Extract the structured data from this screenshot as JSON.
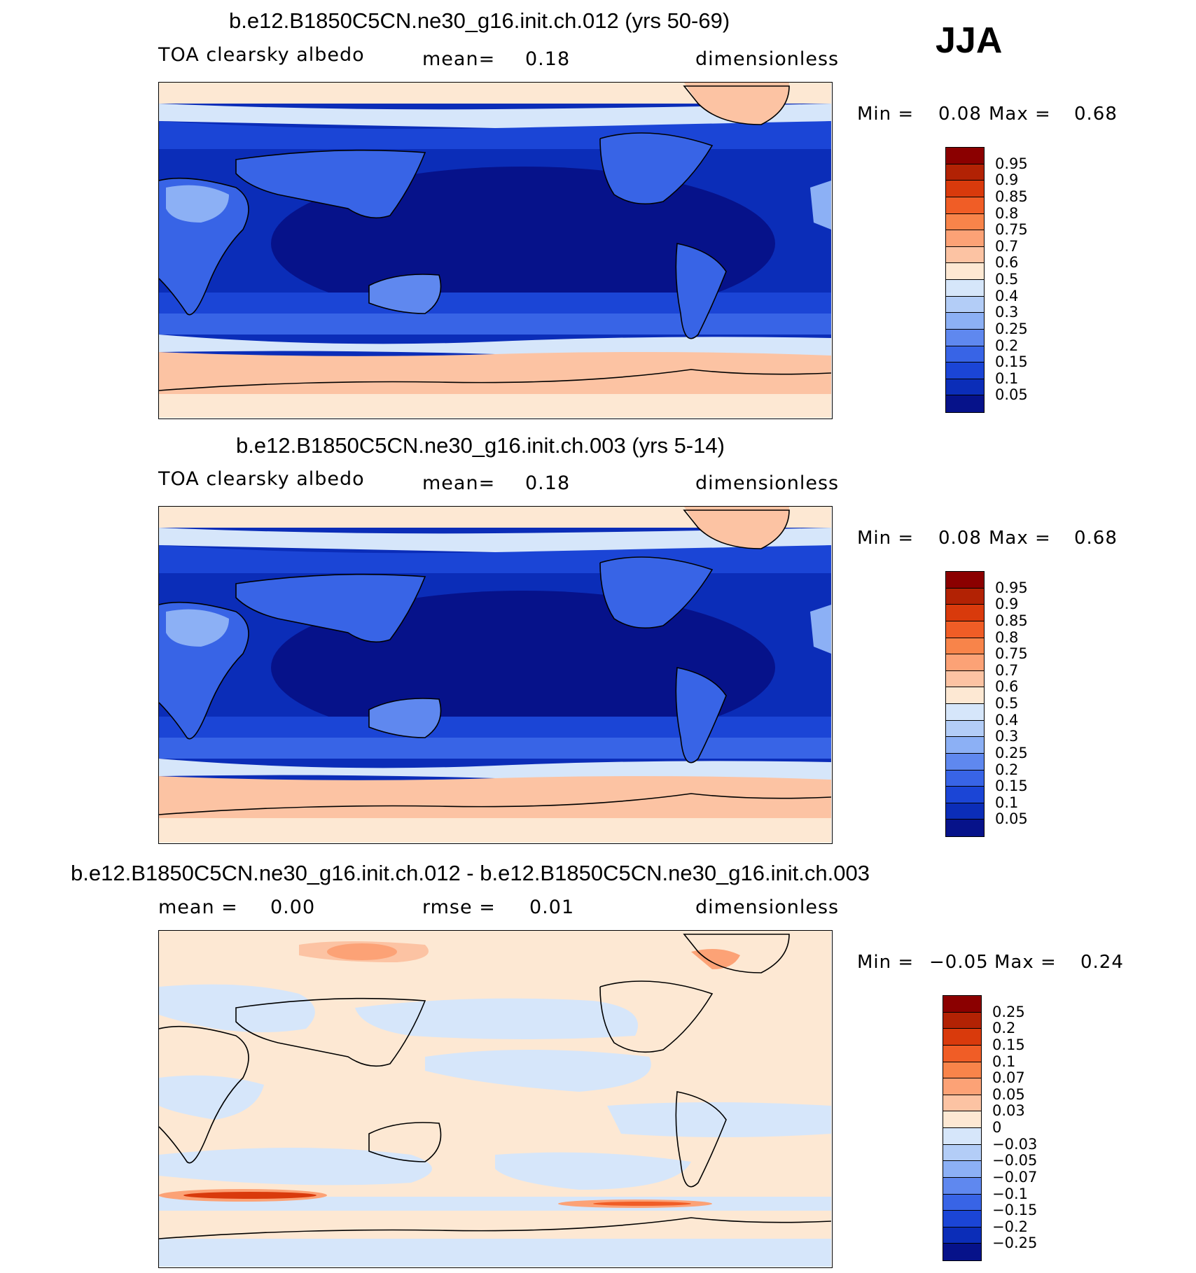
{
  "season": "JJA",
  "panels": [
    {
      "title": "b.e12.B1850C5CN.ne30_g16.init.ch.012 (yrs 50-69)",
      "left_label": "TOA clearsky albedo",
      "center_label": "mean=",
      "center_value": "0.18",
      "right_label": "dimensionless",
      "min_label": "Min =",
      "min_value": "0.08",
      "max_label": "Max =",
      "max_value": "0.68",
      "colorbar_labels": [
        "0.95",
        "0.9",
        "0.85",
        "0.8",
        "0.75",
        "0.7",
        "0.6",
        "0.5",
        "0.4",
        "0.3",
        "0.25",
        "0.2",
        "0.15",
        "0.1",
        "0.05"
      ],
      "colorbar_colors": [
        "#8b0000",
        "#b22204",
        "#d93a0c",
        "#f05d26",
        "#f8844a",
        "#fca276",
        "#fcc3a3",
        "#fde8d3",
        "#d6e6fa",
        "#b3cdf7",
        "#8cb0f5",
        "#5f88ef",
        "#3864e6",
        "#1b45d6",
        "#0b2db8",
        "#06128a"
      ]
    },
    {
      "title": "b.e12.B1850C5CN.ne30_g16.init.ch.003 (yrs 5-14)",
      "left_label": "TOA clearsky albedo",
      "center_label": "mean=",
      "center_value": "0.18",
      "right_label": "dimensionless",
      "min_label": "Min =",
      "min_value": "0.08",
      "max_label": "Max =",
      "max_value": "0.68",
      "colorbar_labels": [
        "0.95",
        "0.9",
        "0.85",
        "0.8",
        "0.75",
        "0.7",
        "0.6",
        "0.5",
        "0.4",
        "0.3",
        "0.25",
        "0.2",
        "0.15",
        "0.1",
        "0.05"
      ],
      "colorbar_colors": [
        "#8b0000",
        "#b22204",
        "#d93a0c",
        "#f05d26",
        "#f8844a",
        "#fca276",
        "#fcc3a3",
        "#fde8d3",
        "#d6e6fa",
        "#b3cdf7",
        "#8cb0f5",
        "#5f88ef",
        "#3864e6",
        "#1b45d6",
        "#0b2db8",
        "#06128a"
      ]
    },
    {
      "title": "b.e12.B1850C5CN.ne30_g16.init.ch.012 - b.e12.B1850C5CN.ne30_g16.init.ch.003",
      "left_label": "mean =",
      "left_value": "0.00",
      "center_label": "rmse =",
      "center_value": "0.01",
      "right_label": "dimensionless",
      "min_label": "Min =",
      "min_value": "−0.05",
      "max_label": "Max =",
      "max_value": "0.24",
      "colorbar_labels": [
        "0.25",
        "0.2",
        "0.15",
        "0.1",
        "0.07",
        "0.05",
        "0.03",
        "0",
        "−0.03",
        "−0.05",
        "−0.07",
        "−0.1",
        "−0.15",
        "−0.2",
        "−0.25"
      ],
      "colorbar_colors": [
        "#8b0000",
        "#b22204",
        "#d93a0c",
        "#f05d26",
        "#f8844a",
        "#fca276",
        "#fcc3a3",
        "#fde8d3",
        "#d6e6fa",
        "#b3cdf7",
        "#8cb0f5",
        "#5f88ef",
        "#3864e6",
        "#1b45d6",
        "#0b2db8",
        "#06128a"
      ]
    }
  ]
}
